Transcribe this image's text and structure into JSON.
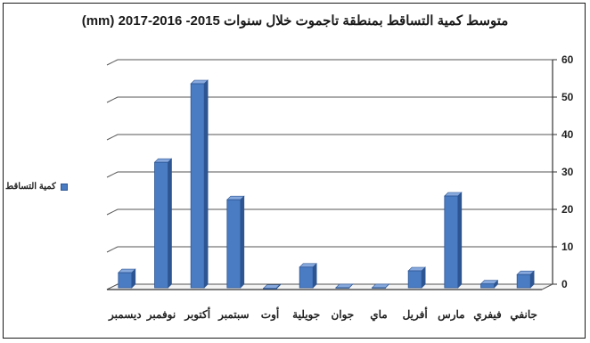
{
  "chart_data": {
    "type": "bar",
    "title": "متوسط كمية التساقط بمنطقة تاجموت خلال سنوات 2015- 2016-2017 (mm)",
    "categories": [
      "جانفي",
      "فيفري",
      "مارس",
      "أفريل",
      "ماي",
      "جوان",
      "جويلية",
      "أوت",
      "سبتمبر",
      "أكتوبر",
      "نوفمبر",
      "ديسمبر"
    ],
    "series": [
      {
        "name": "كمية التساقط",
        "values": [
          4,
          1.5,
          25,
          5,
          0.5,
          0.5,
          6,
          0.3,
          24,
          55,
          34,
          4.5
        ]
      }
    ],
    "ylim": [
      0,
      60
    ],
    "yticks": [
      "0",
      "10",
      "20",
      "30",
      "40",
      "50",
      "60"
    ],
    "xlabel": "",
    "ylabel": "",
    "y_axis_side": "right",
    "category_order": "right-to-left",
    "legend_position": "left",
    "grid": true,
    "bar_color": "#4a7cc4",
    "bar_dark": "#2d5592"
  }
}
